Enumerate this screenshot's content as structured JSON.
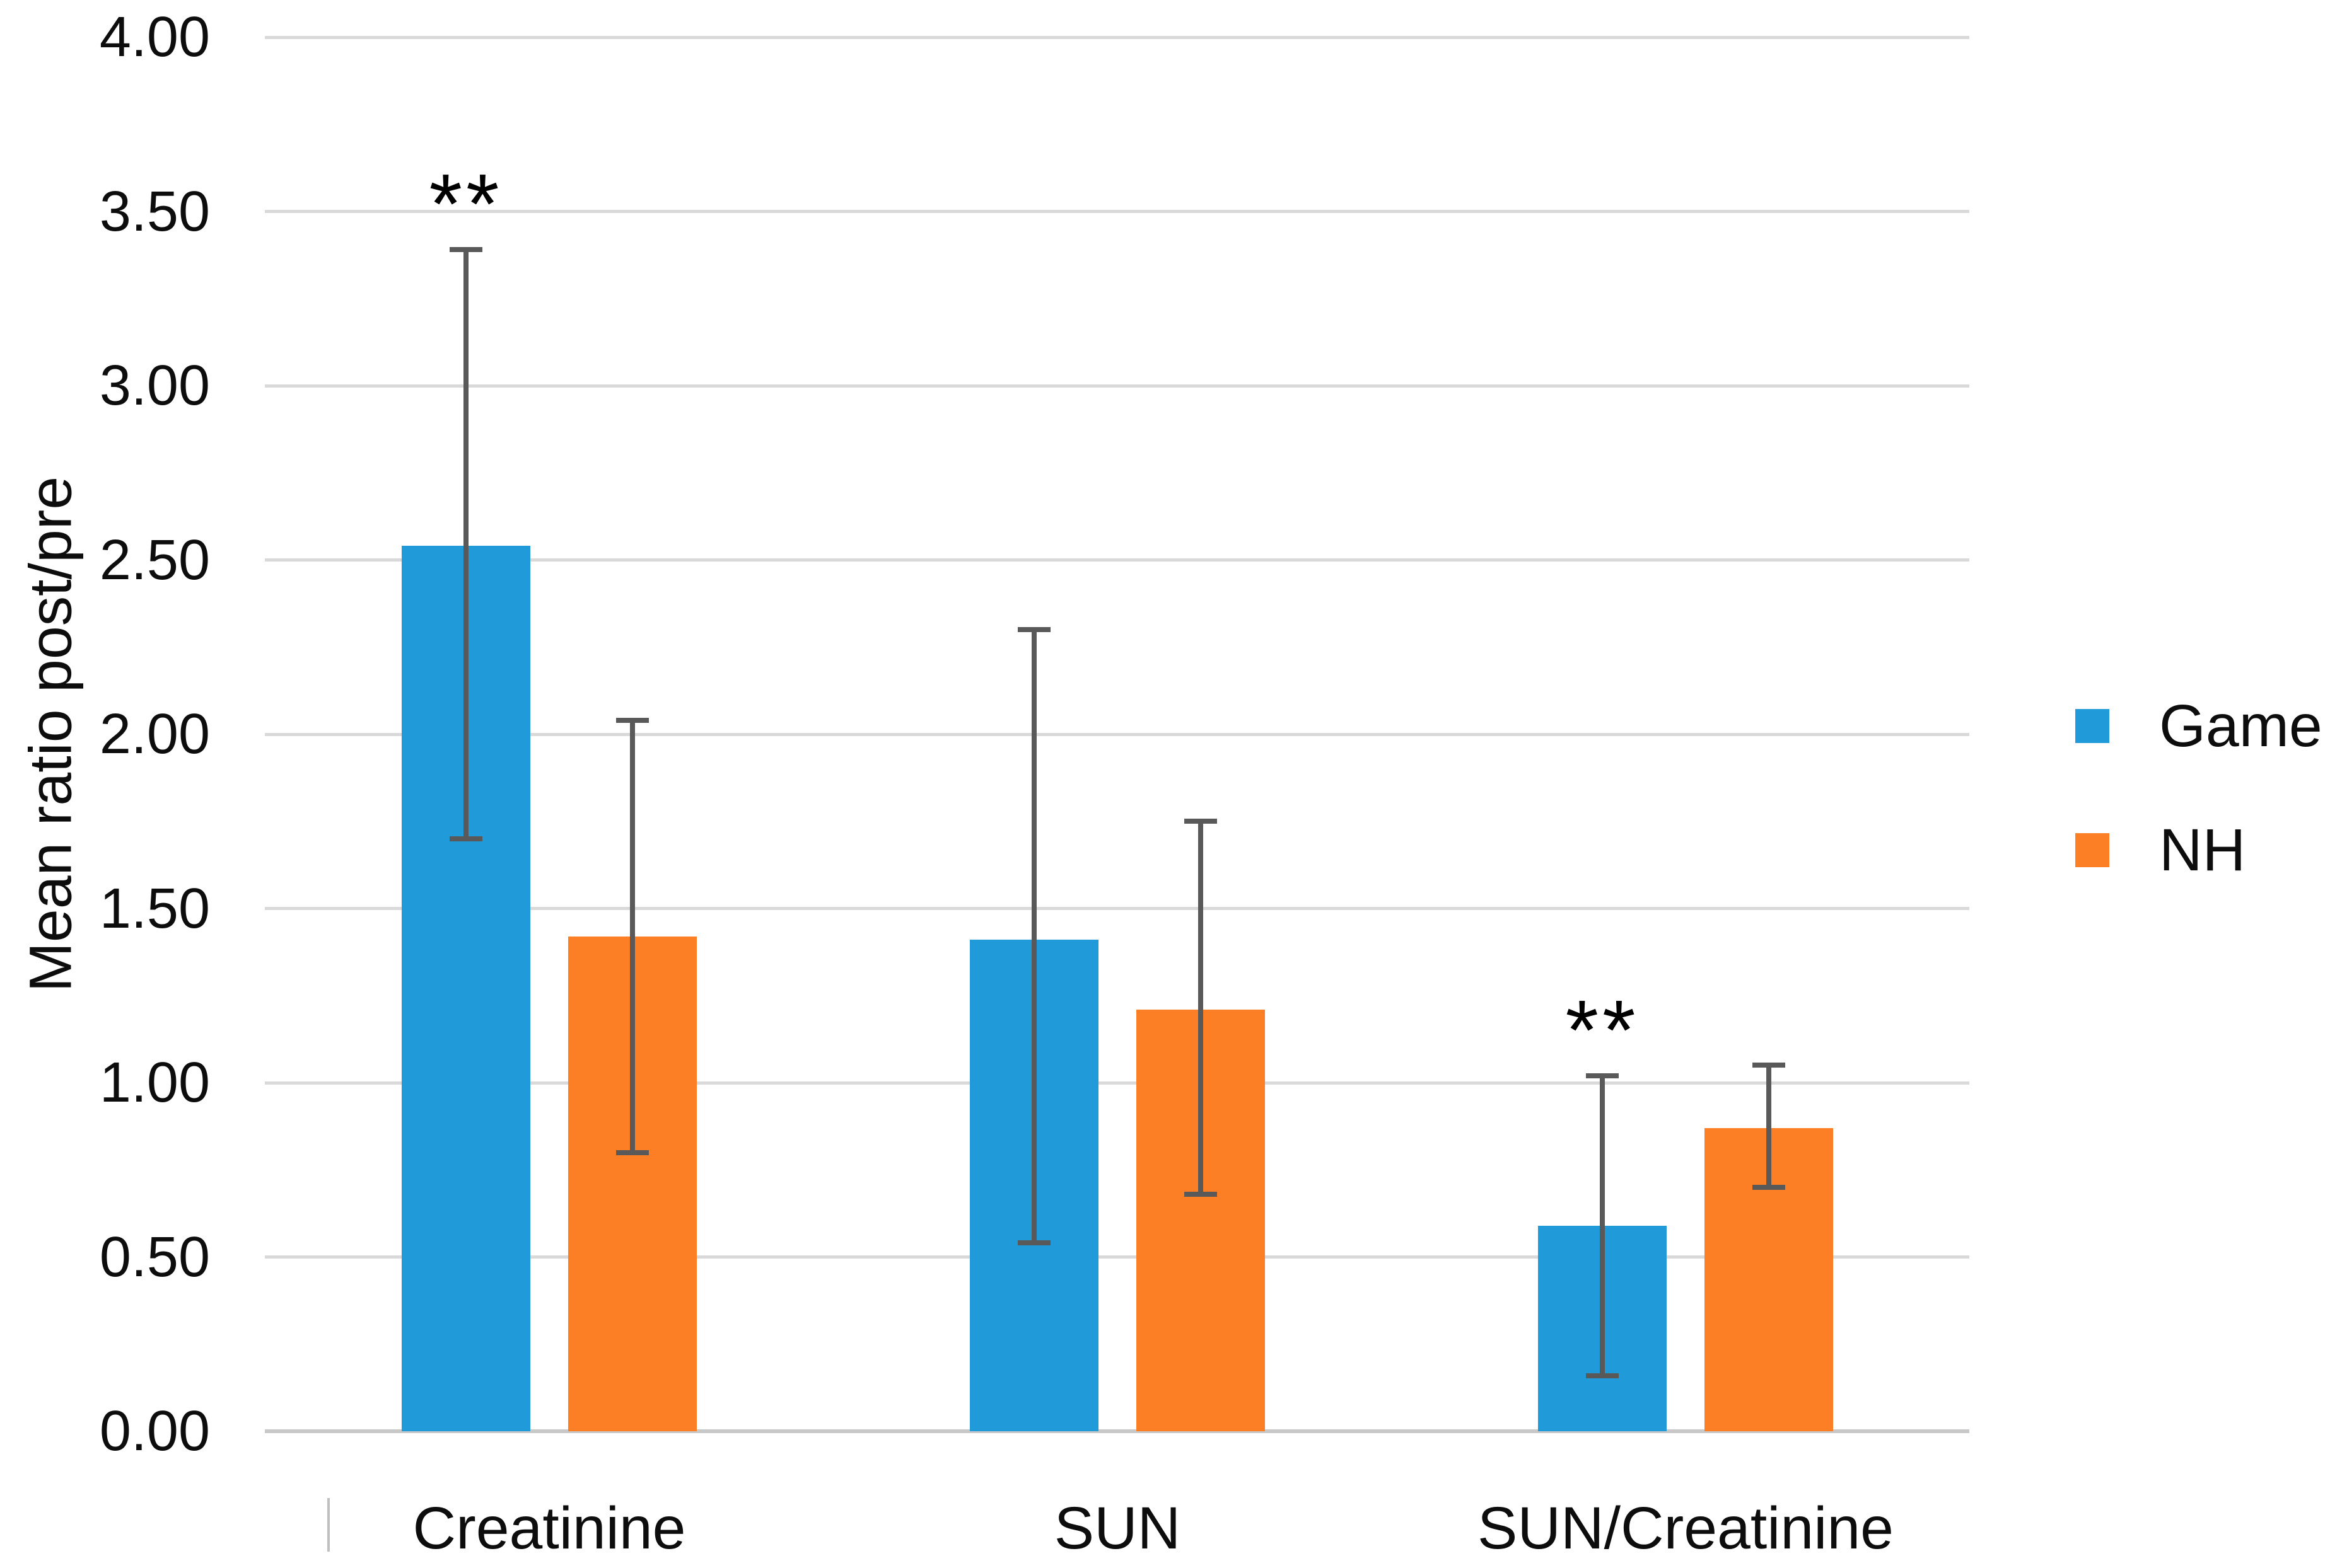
{
  "y_axis": {
    "title": "Mean ratio post/pre",
    "tick_labels": [
      "0.00",
      "0.50",
      "1.00",
      "1.50",
      "2.00",
      "2.50",
      "3.00",
      "3.50",
      "4.00"
    ]
  },
  "x_axis": {
    "categories": [
      "Creatinine",
      "SUN",
      "SUN/Creatinine"
    ]
  },
  "legend": [
    {
      "label": "Game",
      "color": "#209ad8"
    },
    {
      "label": "NH",
      "color": "#fc7e25"
    }
  ],
  "chart_data": {
    "type": "bar",
    "title": "",
    "xlabel": "",
    "ylabel": "Mean ratio post/pre",
    "ylim": [
      0,
      4
    ],
    "ytick_step": 0.5,
    "grid": true,
    "legend_position": "right",
    "categories": [
      "Creatinine",
      "SUN",
      "SUN/Creatinine"
    ],
    "series": [
      {
        "name": "Game",
        "color": "#209ad8",
        "values": [
          2.54,
          1.41,
          0.59
        ],
        "error_low": [
          1.7,
          0.54,
          0.16
        ],
        "error_high": [
          3.39,
          2.3,
          1.02
        ],
        "significance": [
          "**",
          "",
          "**"
        ]
      },
      {
        "name": "NH",
        "color": "#fc7e25",
        "values": [
          1.42,
          1.21,
          0.87
        ],
        "error_low": [
          0.8,
          0.68,
          0.7
        ],
        "error_high": [
          2.04,
          1.75,
          1.05
        ],
        "significance": [
          "",
          "",
          ""
        ]
      }
    ],
    "error_bar_color": "#595959",
    "gridline_color": "#d9d9d9",
    "axis_line_color": "#c8c8c8",
    "text_color": "#0d0d0d",
    "background": "#ffffff"
  }
}
